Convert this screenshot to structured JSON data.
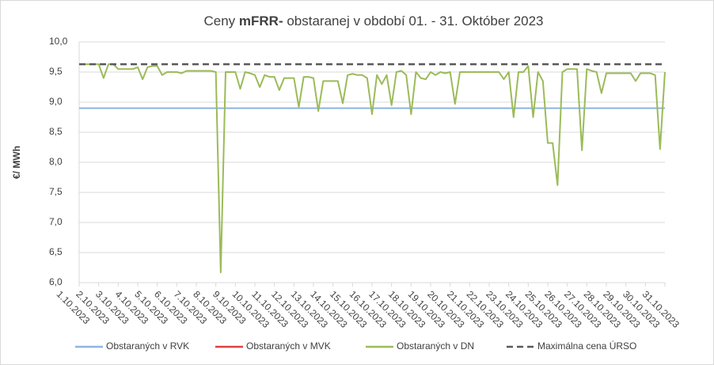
{
  "chart_data": {
    "type": "line",
    "title_parts": [
      "Ceny ",
      "mFRR-",
      " obstaranej v období 01. - 31. Október 2023"
    ],
    "y_label": "€/ MWh",
    "categories": [
      "1.10.2023",
      null,
      null,
      null,
      "2.10.2023",
      null,
      null,
      null,
      "3.10.2023",
      null,
      null,
      null,
      "4.10.2023",
      null,
      null,
      null,
      "5.10.2023",
      null,
      null,
      null,
      "6.10.2023",
      null,
      null,
      null,
      "7.10.2023",
      null,
      null,
      null,
      "8.10.2023",
      null,
      null,
      null,
      "9.10.2023",
      null,
      null,
      null,
      "10.10.2023",
      null,
      null,
      null,
      "11.10.2023",
      null,
      null,
      null,
      "12.10.2023",
      null,
      null,
      null,
      "13.10.2023",
      null,
      null,
      null,
      "14.10.2023",
      null,
      null,
      null,
      "15.10.2023",
      null,
      null,
      null,
      "16.10.2023",
      null,
      null,
      null,
      "17.10.2023",
      null,
      null,
      null,
      "18.10.2023",
      null,
      null,
      null,
      "19.10.2023",
      null,
      null,
      null,
      "20.10.2023",
      null,
      null,
      null,
      "21.10.2023",
      null,
      null,
      null,
      "22.10.2023",
      null,
      null,
      null,
      "23.10.2023",
      null,
      null,
      null,
      "24.10.2023",
      null,
      null,
      null,
      "25.10.2023",
      null,
      null,
      null,
      "26.10.2023",
      null,
      null,
      null,
      "27.10.2023",
      null,
      null,
      null,
      "28.10.2023",
      null,
      null,
      null,
      "29.10.2023",
      null,
      null,
      null,
      "30.10.2023",
      null,
      null,
      null,
      "31.10.2023"
    ],
    "ylim": [
      6.0,
      10.0
    ],
    "yticks": [
      {
        "value": 6.0,
        "label": "6,0"
      },
      {
        "value": 6.5,
        "label": "6,5"
      },
      {
        "value": 7.0,
        "label": "7,0"
      },
      {
        "value": 7.5,
        "label": "7,5"
      },
      {
        "value": 8.0,
        "label": "8,0"
      },
      {
        "value": 8.5,
        "label": "8,5"
      },
      {
        "value": 9.0,
        "label": "9,0"
      },
      {
        "value": 9.5,
        "label": "9,5"
      },
      {
        "value": 10.0,
        "label": "10,0"
      }
    ],
    "grid": true,
    "series": [
      {
        "name": "Obstaraných v RVK",
        "color": "#8eb4e3",
        "dash": false,
        "values": [
          8.9,
          8.9,
          8.9,
          8.9,
          8.9,
          8.9,
          8.9,
          8.9,
          8.9,
          8.9,
          8.9,
          8.9,
          8.9,
          8.9,
          8.9,
          8.9,
          8.9,
          8.9,
          8.9,
          8.9,
          8.9,
          8.9,
          8.9,
          8.9,
          8.9,
          8.9,
          8.9,
          8.9,
          8.9,
          8.9,
          8.9,
          8.9,
          8.9,
          8.9,
          8.9,
          8.9,
          8.9,
          8.9,
          8.9,
          8.9,
          8.9,
          8.9,
          8.9,
          8.9,
          8.9,
          8.9,
          8.9,
          8.9,
          8.9,
          8.9,
          8.9,
          8.9,
          8.9,
          8.9,
          8.9,
          8.9,
          8.9,
          8.9,
          8.9,
          8.9,
          8.9,
          8.9,
          8.9,
          8.9,
          8.9,
          8.9,
          8.9,
          8.9,
          8.9,
          8.9,
          8.9,
          8.9,
          8.9,
          8.9,
          8.9,
          8.9,
          8.9,
          8.9,
          8.9,
          8.9,
          8.9,
          8.9,
          8.9,
          8.9,
          8.9,
          8.9,
          8.9,
          8.9,
          8.9,
          8.9,
          8.9,
          8.9,
          8.9,
          8.9,
          8.9,
          8.9,
          8.9,
          8.9,
          8.9,
          8.9,
          8.9,
          8.9,
          8.9,
          8.9,
          8.9,
          8.9,
          8.9,
          8.9,
          8.9,
          8.9,
          8.9,
          8.9,
          8.9,
          8.9,
          8.9,
          8.9,
          8.9,
          8.9,
          8.9,
          8.9,
          8.9
        ]
      },
      {
        "name": "Obstaraných v MVK",
        "color": "#e04040",
        "dash": false,
        "values": [
          null,
          null,
          null,
          null,
          null,
          null,
          null,
          null,
          null,
          null,
          null,
          null,
          null,
          null,
          null,
          null,
          null,
          null,
          null,
          null,
          null,
          null,
          null,
          null,
          null,
          null,
          null,
          null,
          null,
          null,
          null,
          null,
          null,
          null,
          null,
          null,
          null,
          null,
          null,
          null,
          null,
          null,
          null,
          null,
          null,
          null,
          null,
          null,
          null,
          null,
          null,
          null,
          null,
          null,
          null,
          null,
          null,
          null,
          null,
          null,
          null,
          null,
          null,
          null,
          null,
          null,
          null,
          null,
          null,
          null,
          null,
          null,
          null,
          null,
          null,
          null,
          null,
          null,
          null,
          null,
          null,
          null,
          null,
          null,
          null,
          null,
          null,
          null,
          null,
          null,
          null,
          null,
          null,
          null,
          null,
          null,
          null,
          null,
          null,
          null,
          null,
          null,
          null,
          null,
          null,
          null,
          null,
          null,
          null,
          null,
          null,
          null,
          null,
          null,
          null,
          null,
          null,
          null,
          null,
          null,
          null
        ]
      },
      {
        "name": "Obstaraných v DN",
        "color": "#9bbb59",
        "dash": false,
        "values": [
          9.63,
          9.63,
          9.63,
          9.63,
          9.63,
          9.4,
          9.63,
          9.63,
          9.55,
          9.55,
          9.55,
          9.55,
          9.58,
          9.38,
          9.58,
          9.6,
          9.6,
          9.45,
          9.5,
          9.5,
          9.5,
          9.48,
          9.52,
          9.52,
          9.52,
          9.52,
          9.52,
          9.52,
          9.5,
          6.17,
          9.5,
          9.5,
          9.5,
          9.22,
          9.5,
          9.48,
          9.45,
          9.25,
          9.45,
          9.42,
          9.42,
          9.2,
          9.4,
          9.4,
          9.4,
          8.92,
          9.42,
          9.42,
          9.4,
          8.85,
          9.35,
          9.35,
          9.35,
          9.35,
          8.98,
          9.45,
          9.47,
          9.45,
          9.45,
          9.4,
          8.8,
          9.45,
          9.3,
          9.45,
          8.95,
          9.5,
          9.52,
          9.45,
          8.8,
          9.5,
          9.4,
          9.38,
          9.5,
          9.45,
          9.5,
          9.48,
          9.5,
          8.97,
          9.5,
          9.5,
          9.5,
          9.5,
          9.5,
          9.5,
          9.5,
          9.5,
          9.5,
          9.38,
          9.5,
          8.75,
          9.5,
          9.5,
          9.6,
          8.75,
          9.5,
          9.35,
          8.32,
          8.32,
          7.62,
          9.5,
          9.55,
          9.55,
          9.55,
          8.2,
          9.55,
          9.52,
          9.5,
          9.15,
          9.48,
          9.48,
          9.48,
          9.48,
          9.48,
          9.48,
          9.35,
          9.48,
          9.48,
          9.48,
          9.45,
          8.22,
          9.5
        ]
      },
      {
        "name": "Maximálna cena ÚRSO",
        "color": "#595959",
        "dash": true,
        "values": [
          9.63,
          9.63,
          9.63,
          9.63,
          9.63,
          9.63,
          9.63,
          9.63,
          9.63,
          9.63,
          9.63,
          9.63,
          9.63,
          9.63,
          9.63,
          9.63,
          9.63,
          9.63,
          9.63,
          9.63,
          9.63,
          9.63,
          9.63,
          9.63,
          9.63,
          9.63,
          9.63,
          9.63,
          9.63,
          9.63,
          9.63,
          9.63,
          9.63,
          9.63,
          9.63,
          9.63,
          9.63,
          9.63,
          9.63,
          9.63,
          9.63,
          9.63,
          9.63,
          9.63,
          9.63,
          9.63,
          9.63,
          9.63,
          9.63,
          9.63,
          9.63,
          9.63,
          9.63,
          9.63,
          9.63,
          9.63,
          9.63,
          9.63,
          9.63,
          9.63,
          9.63,
          9.63,
          9.63,
          9.63,
          9.63,
          9.63,
          9.63,
          9.63,
          9.63,
          9.63,
          9.63,
          9.63,
          9.63,
          9.63,
          9.63,
          9.63,
          9.63,
          9.63,
          9.63,
          9.63,
          9.63,
          9.63,
          9.63,
          9.63,
          9.63,
          9.63,
          9.63,
          9.63,
          9.63,
          9.63,
          9.63,
          9.63,
          9.63,
          9.63,
          9.63,
          9.63,
          9.63,
          9.63,
          9.63,
          9.63,
          9.63,
          9.63,
          9.63,
          9.63,
          9.63,
          9.63,
          9.63,
          9.63,
          9.63,
          9.63,
          9.63,
          9.63,
          9.63,
          9.63,
          9.63,
          9.63,
          9.63,
          9.63,
          9.63,
          9.63,
          9.63
        ]
      }
    ]
  }
}
